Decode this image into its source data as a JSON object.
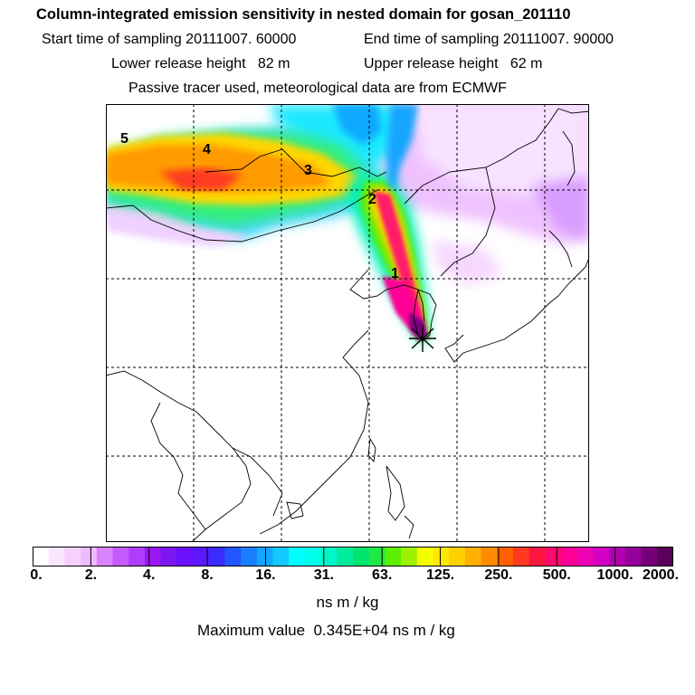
{
  "header": {
    "title": "Column-integrated emission sensitivity in nested domain for gosan_201110",
    "start_sampling": "Start time of sampling 20111007. 60000",
    "end_sampling": "End time of sampling 20111007. 90000",
    "lower_release": "Lower release height   82 m",
    "upper_release": "Upper release height   62 m",
    "tracer_note": "Passive tracer used, meteorological data are from ECMWF"
  },
  "map": {
    "receptor_marker": "*",
    "trajectory_labels": [
      "1",
      "2",
      "3",
      "4",
      "5"
    ],
    "gridline_style": "dashed"
  },
  "colorbar": {
    "ticks": [
      "0.",
      "2.",
      "4.",
      "8.",
      "16.",
      "31.",
      "63.",
      "125.",
      "250.",
      "500.",
      "1000.",
      "2000."
    ],
    "colors": [
      "#ffffff",
      "#fbe6ff",
      "#f6d1ff",
      "#efbaff",
      "#d983ff",
      "#c55bff",
      "#b03cff",
      "#9a18f6",
      "#7a16f0",
      "#6a10ff",
      "#5a18ff",
      "#3a2cff",
      "#2455ff",
      "#1a7fff",
      "#14a6ff",
      "#12c8ff",
      "#00ffff",
      "#00ffea",
      "#00f5c8",
      "#00eb9c",
      "#00e36d",
      "#20e846",
      "#5cf000",
      "#9df200",
      "#f5ff00",
      "#ffe800",
      "#ffd000",
      "#ffb000",
      "#ff8c00",
      "#ff6000",
      "#ff3a20",
      "#ff1640",
      "#ff0a6c",
      "#ff0096",
      "#f000b4",
      "#d200c4",
      "#b200b0",
      "#940098",
      "#760078",
      "#5a005a"
    ],
    "units": "ns m / kg",
    "max_value": "Maximum value  0.345E+04 ns m / kg"
  }
}
